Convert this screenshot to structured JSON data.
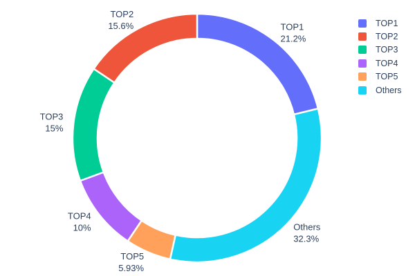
{
  "chart_data": {
    "type": "pie",
    "subtype": "donut",
    "hole": 0.8,
    "title": "",
    "labels": [
      "TOP1",
      "TOP2",
      "TOP3",
      "TOP4",
      "TOP5",
      "Others"
    ],
    "values": [
      21.2,
      15.6,
      15,
      10,
      5.93,
      32.3
    ],
    "percent_labels": [
      "21.2%",
      "15.6%",
      "15%",
      "10%",
      "5.93%",
      "32.3%"
    ],
    "colors": [
      "#636EFA",
      "#EF553B",
      "#00CC96",
      "#AB63FA",
      "#FFA15A",
      "#19D3F3"
    ],
    "clockwise_draw_order": [
      "TOP1",
      "Others",
      "TOP5",
      "TOP4",
      "TOP3",
      "TOP2"
    ],
    "start_angle_deg": 0,
    "slice_border_color": "#ffffff",
    "text_color": "#2a3f5f",
    "background": "#ffffff",
    "legend_position": "top-right",
    "legend_items": [
      "TOP1",
      "TOP2",
      "TOP3",
      "TOP4",
      "TOP5",
      "Others"
    ]
  }
}
